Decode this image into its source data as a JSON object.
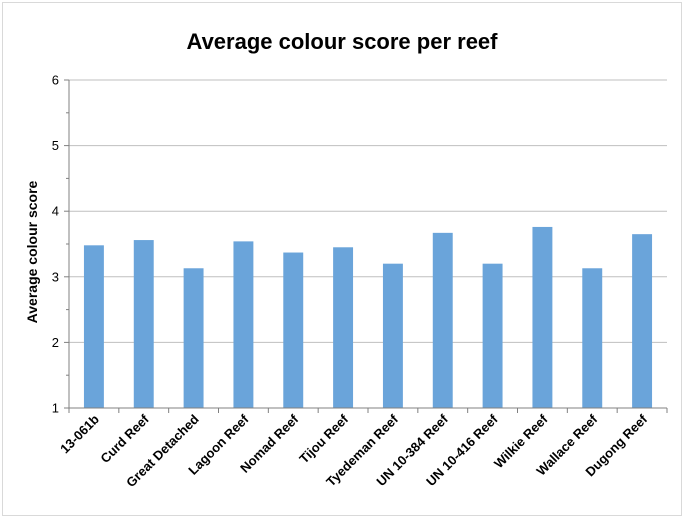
{
  "chart_data": {
    "type": "bar",
    "title": "Average colour score per reef",
    "xlabel": "",
    "ylabel": "Average colour score",
    "ylim": [
      1,
      6
    ],
    "yticks": [
      1,
      2,
      3,
      4,
      5,
      6
    ],
    "grid": true,
    "legend": "none",
    "bar_color": "#6aa4da",
    "categories": [
      "13-061b",
      "Curd Reef",
      "Great Detached",
      "Lagoon Reef",
      "Nomad Reef",
      "Tijou Reef",
      "Tyedeman Reef",
      "UN 10-384 Reef",
      "UN 10-416 Reef",
      "Wilkie Reef",
      "Wallace Reef",
      "Dugong Reef"
    ],
    "values": [
      3.48,
      3.56,
      3.13,
      3.54,
      3.37,
      3.45,
      3.2,
      3.67,
      3.2,
      3.76,
      3.13,
      3.65
    ]
  }
}
